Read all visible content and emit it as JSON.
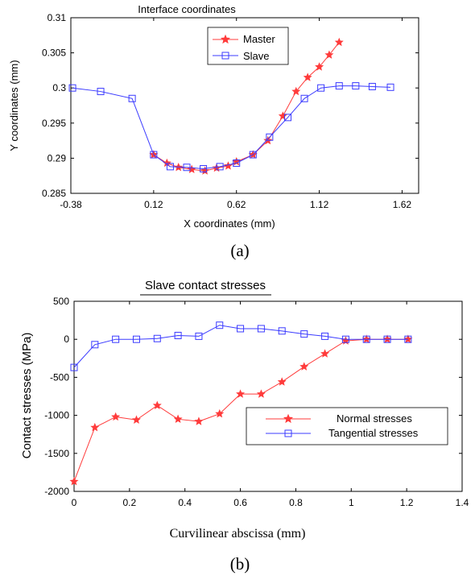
{
  "colors": {
    "master": "#ff3b3b",
    "slave": "#3b3bff",
    "normal": "#ff3b3b",
    "tangential": "#3b3bff"
  },
  "chart_data": [
    {
      "type": "line",
      "title": "Interface coordinates",
      "xlabel": "X  coordinates (mm)",
      "ylabel": "Y coordinates (mm)",
      "xlim": [
        -0.38,
        1.72
      ],
      "ylim": [
        0.285,
        0.31
      ],
      "xticks": [
        "-0.38",
        "0.12",
        "0.62",
        "1.12",
        "1.62"
      ],
      "xtick_values": [
        -0.38,
        0.12,
        0.62,
        1.12,
        1.62
      ],
      "yticks": [
        "0.285",
        "0.29",
        "0.295",
        "0.3",
        "0.305",
        "0.31"
      ],
      "ytick_values": [
        0.285,
        0.29,
        0.295,
        0.3,
        0.305,
        0.31
      ],
      "legend": "top-center",
      "caption": "(a)",
      "series": [
        {
          "name": "Master",
          "marker": "star",
          "x": [
            0.12,
            0.2,
            0.27,
            0.35,
            0.43,
            0.5,
            0.57,
            0.62,
            0.72,
            0.81,
            0.9,
            0.98,
            1.05,
            1.12,
            1.18,
            1.24
          ],
          "y": [
            0.2905,
            0.2893,
            0.2887,
            0.2884,
            0.2882,
            0.2886,
            0.2889,
            0.2895,
            0.2905,
            0.2925,
            0.296,
            0.2995,
            0.3015,
            0.303,
            0.3047,
            0.3065
          ]
        },
        {
          "name": "Slave",
          "marker": "square",
          "x": [
            -0.37,
            -0.2,
            -0.01,
            0.12,
            0.22,
            0.32,
            0.42,
            0.52,
            0.62,
            0.72,
            0.82,
            0.93,
            1.03,
            1.13,
            1.24,
            1.34,
            1.44,
            1.55
          ],
          "y": [
            0.3,
            0.2995,
            0.2985,
            0.2905,
            0.2888,
            0.2887,
            0.2885,
            0.2888,
            0.2893,
            0.2905,
            0.293,
            0.2958,
            0.2985,
            0.3,
            0.3003,
            0.3003,
            0.3002,
            0.3001
          ]
        }
      ]
    },
    {
      "type": "line",
      "title": "Slave contact stresses",
      "xlabel": "Curvilinear abscissa (mm)",
      "ylabel": "Contact stresses (MPa)",
      "xlim": [
        0,
        1.4
      ],
      "ylim": [
        -2000,
        500
      ],
      "xticks": [
        "0",
        "0.2",
        "0.4",
        "0.6",
        "0.8",
        "1",
        "1.2",
        "1.4"
      ],
      "xtick_values": [
        0,
        0.2,
        0.4,
        0.6,
        0.8,
        1,
        1.2,
        1.4
      ],
      "yticks": [
        "-2000",
        "-1500",
        "-1000",
        "-500",
        "0",
        "500"
      ],
      "ytick_values": [
        -2000,
        -1500,
        -1000,
        -500,
        0,
        500
      ],
      "legend": "bottom-right",
      "caption": "(b)",
      "series": [
        {
          "name": "Normal stresses",
          "marker": "star",
          "x": [
            0,
            0.075,
            0.15,
            0.225,
            0.3,
            0.375,
            0.45,
            0.525,
            0.6,
            0.675,
            0.75,
            0.83,
            0.905,
            0.98,
            1.055,
            1.13,
            1.205
          ],
          "y": [
            -1870,
            -1160,
            -1020,
            -1060,
            -870,
            -1050,
            -1080,
            -980,
            -720,
            -720,
            -560,
            -360,
            -190,
            -20,
            0,
            0,
            0
          ]
        },
        {
          "name": "Tangential stresses",
          "marker": "square",
          "x": [
            0,
            0.075,
            0.15,
            0.225,
            0.3,
            0.375,
            0.45,
            0.525,
            0.6,
            0.675,
            0.75,
            0.83,
            0.905,
            0.98,
            1.055,
            1.13,
            1.205
          ],
          "y": [
            -370,
            -70,
            0,
            0,
            10,
            50,
            40,
            185,
            140,
            140,
            110,
            70,
            40,
            0,
            0,
            0,
            0
          ]
        }
      ]
    }
  ]
}
